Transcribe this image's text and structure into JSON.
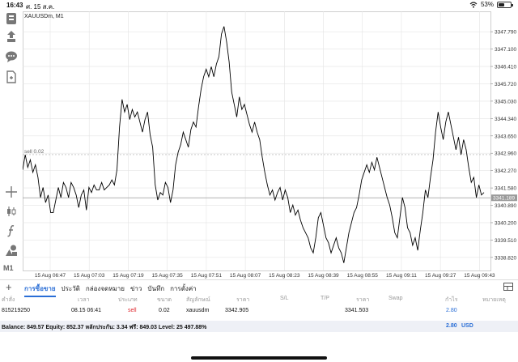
{
  "status_bar": {
    "time": "16:43",
    "date": "ศ. 15 ส.ค.",
    "battery": "53%",
    "battery_level": 0.53
  },
  "chart": {
    "symbol_label": "XAUUSDm, M1",
    "sell_line_label": "sell 0.02",
    "timeframe_button": "M1",
    "current_price": "3341.189"
  },
  "chart_data": {
    "type": "line",
    "symbol": "XAUUSDm",
    "timeframe": "M1",
    "x_tick_labels": [
      "15 Aug 06:47",
      "15 Aug 07:03",
      "15 Aug 07:19",
      "15 Aug 07:35",
      "15 Aug 07:51",
      "15 Aug 08:07",
      "15 Aug 08:23",
      "15 Aug 08:39",
      "15 Aug 08:55",
      "15 Aug 09:11",
      "15 Aug 09:27",
      "15 Aug 09:43"
    ],
    "y_ticks": [
      3338.82,
      3339.51,
      3340.2,
      3340.89,
      3341.58,
      3342.27,
      3342.96,
      3343.65,
      3344.34,
      3345.03,
      3345.72,
      3346.41,
      3347.1,
      3347.79
    ],
    "y_tick_labels": [
      "3338.820",
      "3339.510",
      "3340.200",
      "3340.890",
      "3341.580",
      "3342.270",
      "3342.960",
      "3343.650",
      "3344.340",
      "3345.030",
      "3345.720",
      "3346.410",
      "3347.100",
      "3347.790"
    ],
    "ylim": [
      3338.3,
      3348.6
    ],
    "values": [
      3342.3,
      3342.9,
      3342.4,
      3342.7,
      3342.2,
      3342.5,
      3342.0,
      3341.2,
      3341.6,
      3341.0,
      3341.3,
      3340.6,
      3340.6,
      3341.1,
      3341.6,
      3341.2,
      3341.8,
      3341.6,
      3341.2,
      3341.8,
      3341.6,
      3341.3,
      3340.8,
      3341.3,
      3341.5,
      3340.7,
      3341.6,
      3341.4,
      3341.7,
      3341.5,
      3341.5,
      3341.8,
      3341.5,
      3341.6,
      3341.7,
      3341.9,
      3341.7,
      3342.3,
      3344.0,
      3345.1,
      3344.6,
      3344.9,
      3344.3,
      3344.7,
      3344.4,
      3344.6,
      3344.2,
      3343.8,
      3344.3,
      3344.6,
      3343.7,
      3343.2,
      3341.7,
      3341.1,
      3341.4,
      3341.3,
      3341.8,
      3341.6,
      3341.0,
      3341.5,
      3342.5,
      3343.0,
      3343.3,
      3343.8,
      3343.5,
      3343.2,
      3343.9,
      3344.2,
      3344.0,
      3344.8,
      3345.5,
      3346.0,
      3346.3,
      3346.0,
      3346.4,
      3346.0,
      3346.5,
      3346.8,
      3347.7,
      3348.0,
      3347.4,
      3346.6,
      3345.4,
      3344.9,
      3344.4,
      3345.2,
      3344.7,
      3344.9,
      3344.5,
      3344.1,
      3343.8,
      3344.2,
      3343.8,
      3343.5,
      3342.8,
      3342.2,
      3341.7,
      3341.3,
      3341.5,
      3341.1,
      3341.4,
      3341.6,
      3341.1,
      3341.5,
      3341.2,
      3340.6,
      3340.9,
      3340.5,
      3340.7,
      3340.3,
      3340.0,
      3339.8,
      3339.6,
      3339.2,
      3339.0,
      3339.6,
      3340.4,
      3340.6,
      3340.1,
      3339.6,
      3339.4,
      3339.0,
      3339.3,
      3339.6,
      3339.2,
      3339.0,
      3338.6,
      3339.2,
      3339.8,
      3340.2,
      3340.6,
      3340.8,
      3341.3,
      3341.9,
      3342.2,
      3342.5,
      3342.2,
      3342.6,
      3342.3,
      3342.8,
      3342.4,
      3342.0,
      3341.6,
      3341.2,
      3340.9,
      3340.4,
      3339.8,
      3339.6,
      3340.4,
      3341.2,
      3340.8,
      3340.0,
      3339.8,
      3339.3,
      3339.6,
      3339.1,
      3339.9,
      3340.6,
      3341.5,
      3341.2,
      3342.0,
      3342.7,
      3343.8,
      3344.6,
      3344.0,
      3343.5,
      3344.2,
      3344.6,
      3344.1,
      3343.6,
      3343.1,
      3343.6,
      3342.9,
      3343.5,
      3343.1,
      3342.4,
      3341.8,
      3342.0,
      3341.2,
      3341.7,
      3341.3,
      3341.4
    ]
  },
  "terminal": {
    "tabs": [
      "การซื้อขาย",
      "ประวัติ",
      "กล่องจดหมาย",
      "ข่าว",
      "บันทึก",
      "การตั้งค่า"
    ],
    "columns": [
      "คำสั่ง",
      "เวลา",
      "ประเภท",
      "ขนาด",
      "สัญลักษณ์",
      "ราคา",
      "S/L",
      "T/P",
      "ราคา",
      "Swap",
      "กำไร",
      "หมายเหตุ"
    ],
    "rows": [
      {
        "order": "815219250",
        "time": "08.15 06:41",
        "type": "sell",
        "size": "0.02",
        "symbol": "xauusdm",
        "price_open": "3342.905",
        "sl": "",
        "tp": "",
        "price_current": "3341.503",
        "swap": "",
        "profit": "2.80",
        "comment": ""
      }
    ],
    "balance_line": "Balance: 849.57  Equity: 852.37  หลักประกัน: 3.34  ฟรี: 849.03  Level: 25 497.88%",
    "total_profit": "2.80",
    "currency": "USD"
  },
  "colors": {
    "accent": "#2a6ed6",
    "sell": "#e0282f",
    "chart_line": "#000000",
    "grid": "#e4e4e4"
  },
  "icons": [
    "new-order-icon",
    "trade-arrows-icon",
    "chat-icon",
    "document-icon",
    "crosshair-icon",
    "candles-icon",
    "function-icon",
    "objects-icon",
    "add-icon",
    "grid-icon",
    "wifi-icon",
    "battery-icon"
  ]
}
